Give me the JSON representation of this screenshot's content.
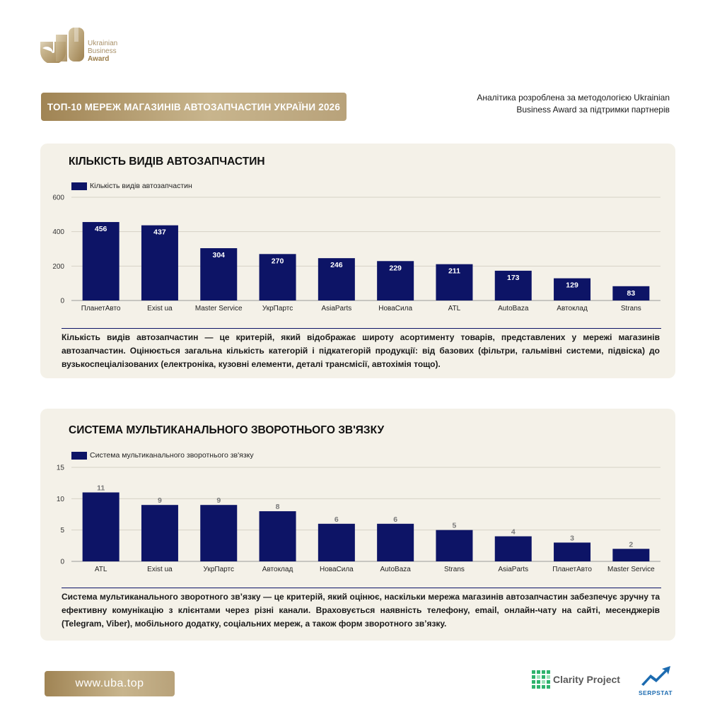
{
  "brand": {
    "logo_line1": "Ukrainian",
    "logo_line2": "Business",
    "logo_line3": "Award"
  },
  "header": {
    "title": "ТОП-10 МЕРЕЖ МАГАЗИНІВ АВТОЗАПЧАСТИН УКРАЇНИ 2026",
    "note": "Аналітика розроблена за методологією Ukrainian Business Award за підтримки партнерів"
  },
  "footer": {
    "site": "www.uba.top",
    "partner1": "Clarity Project",
    "partner2": "SERPSTAT"
  },
  "colors": {
    "bar": "#0d1466",
    "gold": "#b09466",
    "card_bg": "#f4f1e8"
  },
  "chart_data": [
    {
      "type": "bar",
      "title": "КІЛЬКІСТЬ ВИДІВ АВТОЗАПЧАСТИН",
      "legend": "Кількість видів автозапчастин",
      "categories": [
        "ПланетАвто",
        "Exist ua",
        "Master Service",
        "УкрПартс",
        "AsiaParts",
        "НоваСила",
        "ATL",
        "AutoBaza",
        "Автоклад",
        "Strans"
      ],
      "values": [
        456,
        437,
        304,
        270,
        246,
        229,
        211,
        173,
        129,
        83
      ],
      "ylim": [
        0,
        600
      ],
      "yticks": [
        0,
        200,
        400,
        600
      ],
      "grid": true,
      "labels_inside": true,
      "description": "Кількість видів автозапчастин — це критерій, який відображає широту асортименту товарів, представлених у мережі магазинів автозапчастин. Оцінюється загальна кількість категорій і підкатегорій продукції: від базових (фільтри, гальмівні системи, підвіска) до вузькоспеціалізованих (електроніка, кузовні елементи, деталі трансмісії, автохімія тощо)."
    },
    {
      "type": "bar",
      "title": "СИСТЕМА МУЛЬТИКАНАЛЬНОГО ЗВОРОТНЬОГО ЗВ'ЯЗКУ",
      "legend": "Система мультиканального зворотнього зв'язку",
      "categories": [
        "ATL",
        "Exist ua",
        "УкрПартс",
        "Автоклад",
        "НоваСила",
        "AutoBaza",
        "Strans",
        "AsiaParts",
        "ПланетАвто",
        "Master Service"
      ],
      "values": [
        11,
        9,
        9,
        8,
        6,
        6,
        5,
        4,
        3,
        2
      ],
      "ylim": [
        0,
        15
      ],
      "yticks": [
        0,
        5,
        10,
        15
      ],
      "grid": true,
      "labels_inside": false,
      "description": "Система мультиканального зворотного зв’язку — це критерій, який оцінює, наскільки мережа магазинів автозапчастин забезпечує зручну та ефективну комунікацію з клієнтами через різні канали. Враховується наявність телефону, email, онлайн-чату на сайті, месенджерів (Telegram, Viber), мобільного додатку, соціальних мереж, а також форм зворотного зв’язку."
    }
  ]
}
